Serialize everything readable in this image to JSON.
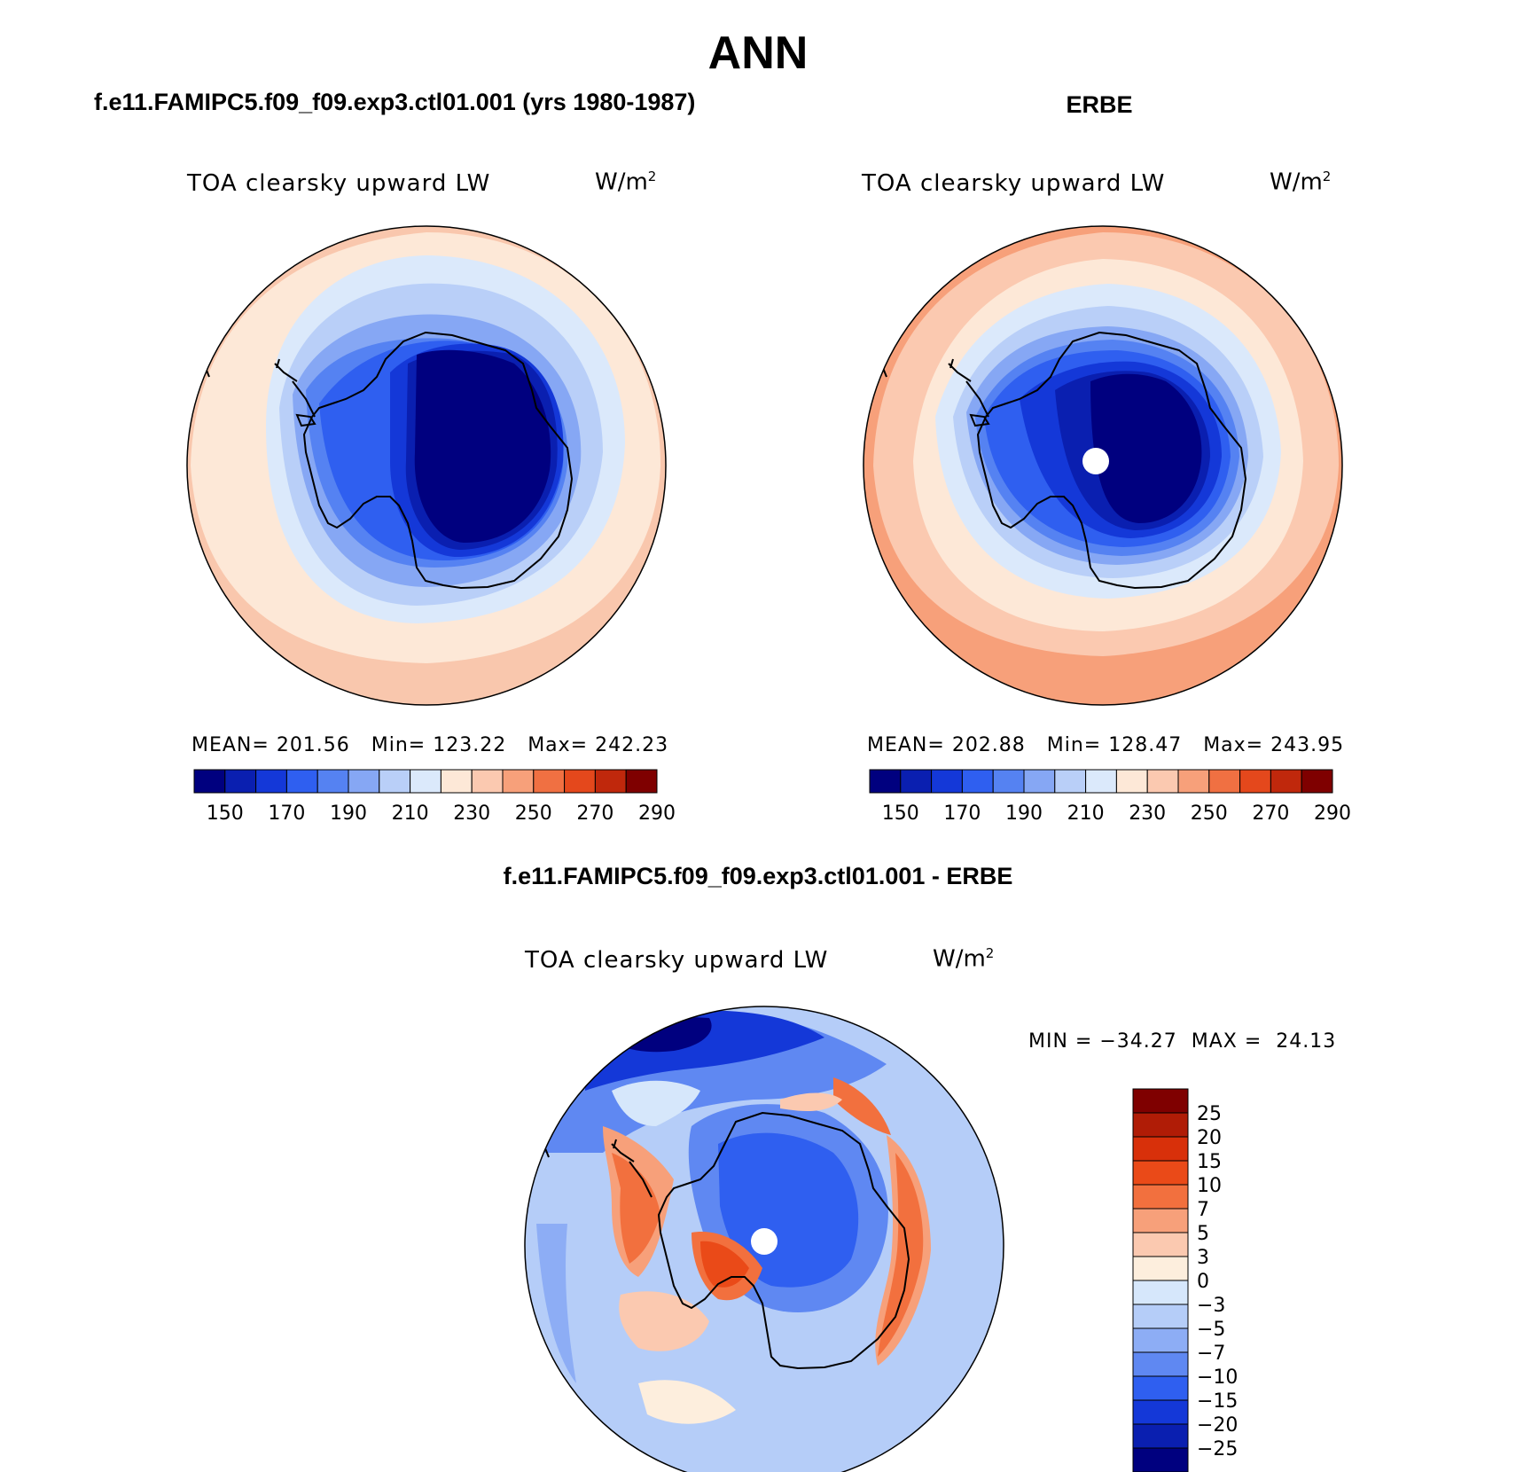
{
  "page": {
    "title": "ANN"
  },
  "panels": {
    "left": {
      "case_title": "f.e11.FAMIPC5.f09_f09.exp3.ctl01.001 (yrs 1980-1987)",
      "variable": "TOA clearsky upward LW",
      "units_base": "W/m",
      "units_exp": "2",
      "stats": "MEAN= 201.56   Min= 123.22   Max= 242.23"
    },
    "right": {
      "case_title": "ERBE",
      "variable": "TOA clearsky upward LW",
      "units_base": "W/m",
      "units_exp": "2",
      "stats": "MEAN= 202.88   Min= 128.47   Max= 243.95"
    },
    "diff": {
      "case_title": "f.e11.FAMIPC5.f09_f09.exp3.ctl01.001 - ERBE",
      "variable": "TOA clearsky upward LW",
      "units_base": "W/m",
      "units_exp": "2",
      "stats": "MIN = −34.27  MAX =  24.13"
    }
  },
  "chart_data": [
    {
      "type": "heatmap",
      "projection": "south-polar-stereographic",
      "title": "f.e11.FAMIPC5.f09_f09.exp3.ctl01.001 (yrs 1980-1987)",
      "variable": "TOA clearsky upward LW",
      "units": "W/m2",
      "mean": 201.56,
      "min": 123.22,
      "max": 242.23,
      "colorbar": {
        "orientation": "horizontal",
        "tick_labels": [
          "150",
          "170",
          "190",
          "210",
          "230",
          "250",
          "270",
          "290"
        ],
        "colors": [
          "#00007f",
          "#0a1fb0",
          "#1438d8",
          "#2f5ff0",
          "#5582f2",
          "#86a7f4",
          "#b9cff8",
          "#dbe9fb",
          "#fde8d7",
          "#fbc9b0",
          "#f7a07a",
          "#f07042",
          "#e4481c",
          "#c0280c",
          "#7f0000"
        ]
      }
    },
    {
      "type": "heatmap",
      "projection": "south-polar-stereographic",
      "title": "ERBE",
      "variable": "TOA clearsky upward LW",
      "units": "W/m2",
      "mean": 202.88,
      "min": 128.47,
      "max": 243.95,
      "colorbar": {
        "orientation": "horizontal",
        "tick_labels": [
          "150",
          "170",
          "190",
          "210",
          "230",
          "250",
          "270",
          "290"
        ],
        "colors": [
          "#00007f",
          "#0a1fb0",
          "#1438d8",
          "#2f5ff0",
          "#5582f2",
          "#86a7f4",
          "#b9cff8",
          "#dbe9fb",
          "#fde8d7",
          "#fbc9b0",
          "#f7a07a",
          "#f07042",
          "#e4481c",
          "#c0280c",
          "#7f0000"
        ]
      }
    },
    {
      "type": "heatmap",
      "projection": "south-polar-stereographic",
      "title": "f.e11.FAMIPC5.f09_f09.exp3.ctl01.001 - ERBE",
      "variable": "TOA clearsky upward LW",
      "units": "W/m2",
      "min": -34.27,
      "max": 24.13,
      "colorbar": {
        "orientation": "vertical",
        "tick_labels": [
          "25",
          "20",
          "15",
          "10",
          "7",
          "5",
          "3",
          "0",
          "−3",
          "−5",
          "−7",
          "−10",
          "−15",
          "−20",
          "−25"
        ],
        "colors": [
          "#7f0000",
          "#b01c06",
          "#d8300a",
          "#ea4a18",
          "#f2703e",
          "#f7a07a",
          "#fbc9b0",
          "#fdeedd",
          "#d6e7fb",
          "#b5cdf8",
          "#8dadf5",
          "#5f88f2",
          "#2f5ff0",
          "#1438d8",
          "#0a1fb0",
          "#00007f"
        ]
      }
    }
  ]
}
